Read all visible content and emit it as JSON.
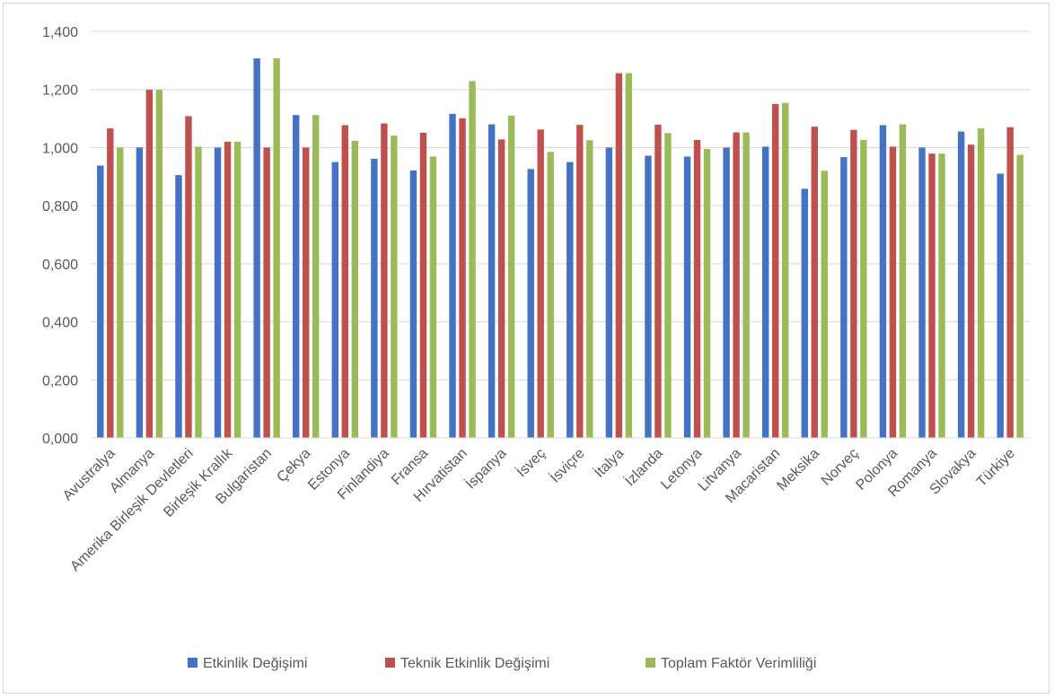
{
  "chart_data": {
    "type": "bar",
    "title": "",
    "xlabel": "",
    "ylabel": "",
    "ylim": [
      0,
      1.4
    ],
    "yticks": [
      0,
      0.2,
      0.4,
      0.6,
      0.8,
      1.0,
      1.2,
      1.4
    ],
    "ytick_labels": [
      "0,000",
      "0,200",
      "0,400",
      "0,600",
      "0,800",
      "1,000",
      "1,200",
      "1,400"
    ],
    "grid": true,
    "legend_position": "bottom",
    "categories": [
      "Avustralya",
      "Almanya",
      "Amerika Birleşik Devletleri",
      "Birleşik Krallık",
      "Bulgaristan",
      "Çekya",
      "Estonya",
      "Finlandiya",
      "Fransa",
      "Hırvatistan",
      "İspanya",
      "İsveç",
      "İsviçre",
      "İtalya",
      "İzlanda",
      "Letonya",
      "Litvanya",
      "Macaristan",
      "Meksika",
      "Norveç",
      "Polonya",
      "Romanya",
      "Slovakya",
      "Türkiye"
    ],
    "series": [
      {
        "name": "Etkinlik Değişimi",
        "color": "#4472c4",
        "values": [
          0.938,
          1.0,
          0.905,
          1.0,
          1.307,
          1.112,
          0.95,
          0.961,
          0.921,
          1.116,
          1.08,
          0.926,
          0.95,
          1.0,
          0.972,
          0.969,
          1.0,
          1.003,
          0.858,
          0.967,
          1.077,
          1.0,
          1.055,
          0.91
        ]
      },
      {
        "name": "Teknik Etkinlik Değişimi",
        "color": "#c0504d",
        "values": [
          1.066,
          1.199,
          1.108,
          1.02,
          1.0,
          1.0,
          1.077,
          1.083,
          1.051,
          1.101,
          1.028,
          1.062,
          1.078,
          1.256,
          1.079,
          1.026,
          1.052,
          1.15,
          1.072,
          1.061,
          1.003,
          0.979,
          1.01,
          1.07
        ]
      },
      {
        "name": "Toplam Faktör Verimliliği",
        "color": "#9bbb59",
        "values": [
          1.0,
          1.199,
          1.003,
          1.02,
          1.307,
          1.112,
          1.023,
          1.041,
          0.969,
          1.229,
          1.11,
          0.985,
          1.025,
          1.256,
          1.05,
          0.995,
          1.052,
          1.154,
          0.92,
          1.026,
          1.08,
          0.979,
          1.066,
          0.975
        ]
      }
    ]
  }
}
